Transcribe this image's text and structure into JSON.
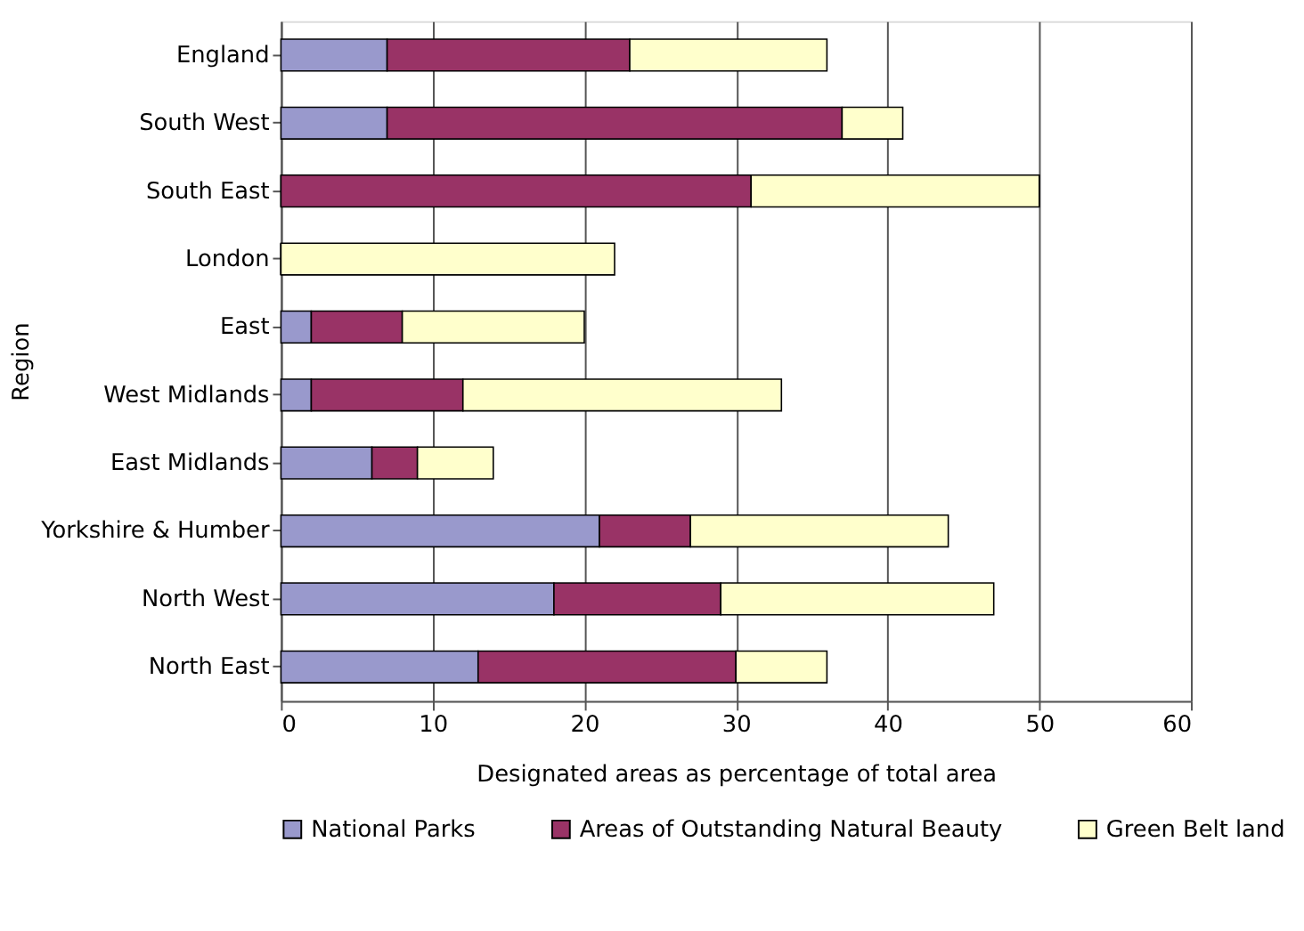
{
  "chart_data": {
    "type": "bar",
    "orientation": "horizontal",
    "stacked": true,
    "categories": [
      "England",
      "South West",
      "South East",
      "London",
      "East",
      "West Midlands",
      "East Midlands",
      "Yorkshire & Humber",
      "North West",
      "North East"
    ],
    "series": [
      {
        "name": "National Parks",
        "color": "#9999cc",
        "values": [
          7,
          7,
          0,
          0,
          2,
          2,
          6,
          21,
          18,
          13
        ]
      },
      {
        "name": "Areas of Outstanding Natural Beauty",
        "color": "#993366",
        "values": [
          16,
          30,
          31,
          0,
          6,
          10,
          3,
          6,
          11,
          17
        ]
      },
      {
        "name": "Green Belt land",
        "color": "#ffffcc",
        "values": [
          13,
          4,
          19,
          22,
          12,
          21,
          5,
          17,
          18,
          6
        ]
      }
    ],
    "xlim": [
      0,
      60
    ],
    "xticks": [
      0,
      10,
      20,
      30,
      40,
      50,
      60
    ],
    "xlabel": "Designated areas as percentage of total area",
    "ylabel": "Region",
    "grid": "x",
    "legend": "bottom"
  }
}
